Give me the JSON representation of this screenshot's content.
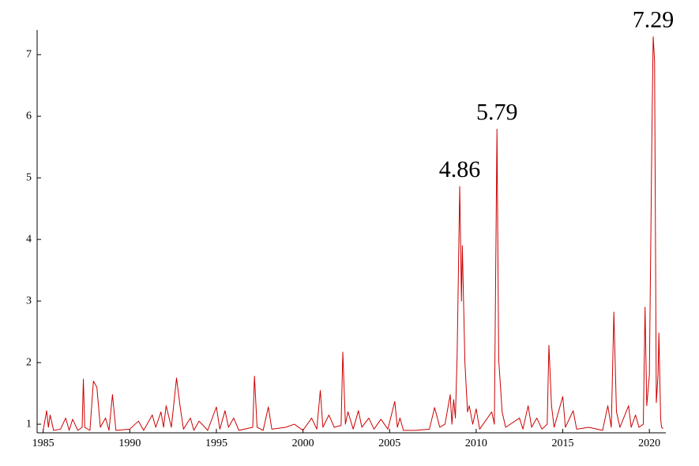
{
  "chart_data": {
    "type": "line",
    "x": [
      1985.0,
      1985.2,
      1985.3,
      1985.4,
      1985.6,
      1986.0,
      1986.3,
      1986.5,
      1986.7,
      1987.0,
      1987.25,
      1987.32,
      1987.4,
      1987.7,
      1987.9,
      1988.1,
      1988.3,
      1988.6,
      1988.8,
      1989.0,
      1989.2,
      1990.0,
      1990.5,
      1990.8,
      1991.3,
      1991.5,
      1991.8,
      1991.95,
      1992.1,
      1992.4,
      1992.7,
      1992.9,
      1993.1,
      1993.5,
      1993.7,
      1994.0,
      1994.5,
      1995.0,
      1995.2,
      1995.5,
      1995.7,
      1996.0,
      1996.3,
      1997.1,
      1997.2,
      1997.35,
      1997.7,
      1998.0,
      1998.2,
      1999.0,
      1999.5,
      2000.0,
      2000.5,
      2000.8,
      2001.0,
      2001.15,
      2001.5,
      2001.8,
      2002.2,
      2002.3,
      2002.45,
      2002.6,
      2002.9,
      2003.2,
      2003.4,
      2003.8,
      2004.1,
      2004.5,
      2004.9,
      2005.3,
      2005.45,
      2005.6,
      2005.8,
      2006.5,
      2007.3,
      2007.6,
      2007.9,
      2008.2,
      2008.5,
      2008.6,
      2008.7,
      2008.8,
      2008.9,
      2009.05,
      2009.15,
      2009.2,
      2009.35,
      2009.5,
      2009.6,
      2009.8,
      2010.0,
      2010.2,
      2010.9,
      2011.05,
      2011.2,
      2011.3,
      2011.5,
      2011.7,
      2012.5,
      2012.7,
      2013.0,
      2013.2,
      2013.5,
      2013.8,
      2014.1,
      2014.2,
      2014.35,
      2014.5,
      2015.0,
      2015.15,
      2015.6,
      2015.8,
      2016.5,
      2017.3,
      2017.6,
      2017.8,
      2017.95,
      2018.1,
      2018.3,
      2018.8,
      2018.95,
      2019.2,
      2019.4,
      2019.65,
      2019.75,
      2019.85,
      2020.0,
      2020.15,
      2020.22,
      2020.3,
      2020.4,
      2020.5,
      2020.55,
      2020.65,
      2020.7,
      2020.8
    ],
    "series": [
      {
        "color": "#cc0000",
        "values": [
          0.9,
          1.22,
          0.95,
          1.15,
          0.9,
          0.92,
          1.1,
          0.9,
          1.08,
          0.9,
          0.95,
          1.73,
          0.95,
          0.9,
          1.7,
          1.6,
          0.95,
          1.1,
          0.9,
          1.48,
          0.9,
          0.92,
          1.05,
          0.9,
          1.15,
          0.95,
          1.2,
          0.95,
          1.3,
          0.95,
          1.75,
          1.3,
          0.92,
          1.1,
          0.9,
          1.05,
          0.9,
          1.28,
          0.92,
          1.22,
          0.95,
          1.1,
          0.9,
          0.95,
          1.78,
          0.95,
          0.9,
          1.28,
          0.92,
          0.95,
          1.0,
          0.9,
          1.1,
          0.92,
          1.55,
          0.95,
          1.15,
          0.95,
          0.98,
          2.17,
          1.0,
          1.2,
          0.92,
          1.22,
          0.95,
          1.1,
          0.92,
          1.08,
          0.92,
          1.37,
          0.95,
          1.1,
          0.9,
          0.9,
          0.92,
          1.27,
          0.95,
          1.0,
          1.48,
          1.0,
          1.4,
          1.1,
          2.1,
          4.86,
          3.0,
          3.9,
          2.0,
          1.2,
          1.3,
          1.0,
          1.25,
          0.92,
          1.2,
          1.0,
          5.79,
          2.05,
          1.2,
          0.95,
          1.1,
          0.92,
          1.3,
          0.95,
          1.1,
          0.92,
          1.0,
          2.28,
          1.3,
          0.95,
          1.45,
          0.95,
          1.22,
          0.92,
          0.95,
          0.9,
          1.3,
          0.95,
          2.82,
          1.2,
          0.95,
          1.3,
          0.95,
          1.15,
          0.95,
          1.0,
          2.9,
          1.3,
          1.8,
          5.8,
          7.29,
          6.9,
          1.35,
          1.8,
          2.48,
          1.1,
          0.95,
          0.93
        ]
      }
    ],
    "annotations": [
      {
        "text": "4.86",
        "x": 2009.05,
        "y": 4.86
      },
      {
        "text": "5.79",
        "x": 2011.2,
        "y": 5.79
      },
      {
        "text": "7.29",
        "x": 2020.22,
        "y": 7.29
      }
    ],
    "xlim": [
      1984.65,
      2020.95
    ],
    "ylim": [
      0.86,
      7.4
    ],
    "xticks": [
      1985,
      1990,
      1995,
      2000,
      2005,
      2010,
      2015,
      2020
    ],
    "yticks": [
      1,
      2,
      3,
      4,
      5,
      6,
      7
    ]
  }
}
